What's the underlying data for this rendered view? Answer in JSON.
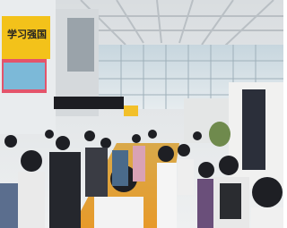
{
  "signs": [
    {
      "text": "学习强国"
    }
  ]
}
